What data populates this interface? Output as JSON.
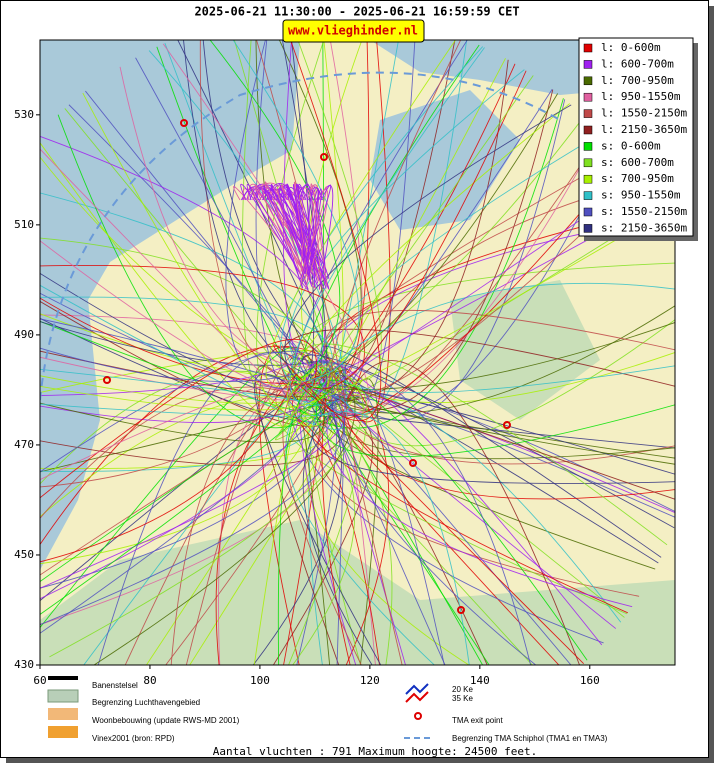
{
  "map": {
    "title": "2025-06-21 11:30:00 - 2025-06-21 16:59:59 CET",
    "watermark": "www.vlieghinder.nl",
    "xlim": [
      60,
      175.5
    ],
    "ylim": [
      430,
      543.6
    ],
    "xticks": [
      60,
      80,
      100,
      120,
      140,
      160
    ],
    "yticks": [
      430,
      450,
      470,
      490,
      510,
      530
    ],
    "legend": [
      {
        "label": "l: 0-600m",
        "color": "#e00000"
      },
      {
        "label": "l: 600-700m",
        "color": "#a020f0"
      },
      {
        "label": "l: 700-950m",
        "color": "#4a6a00"
      },
      {
        "label": "l: 950-1550m",
        "color": "#e060a0"
      },
      {
        "label": "l: 1550-2150m",
        "color": "#c04848"
      },
      {
        "label": "l: 2150-3650m",
        "color": "#902020"
      },
      {
        "label": "s: 0-600m",
        "color": "#00e000"
      },
      {
        "label": "s: 600-700m",
        "color": "#80e020"
      },
      {
        "label": "s: 700-950m",
        "color": "#a8f000"
      },
      {
        "label": "s: 950-1550m",
        "color": "#30c0c8"
      },
      {
        "label": "s: 1550-2150m",
        "color": "#5050c0"
      },
      {
        "label": "s: 2150-3650m",
        "color": "#303080"
      }
    ],
    "key": {
      "runways": "Banenstelsel",
      "airport_boundary": "Begrenzing Luchthavengebied",
      "housing": "Woonbebouwing (update RWS-MD 2001)",
      "vinex": "Vinex2001 (bron: RPD)",
      "ke20": "20 Ke",
      "ke35": "35 Ke",
      "exit_point": "TMA exit point",
      "tma_boundary": "Begrenzing TMA Schiphol  (TMA1 en TMA3)"
    },
    "footer": "Aantal vluchten : 791 Maximum hoogte: 24500 feet."
  }
}
